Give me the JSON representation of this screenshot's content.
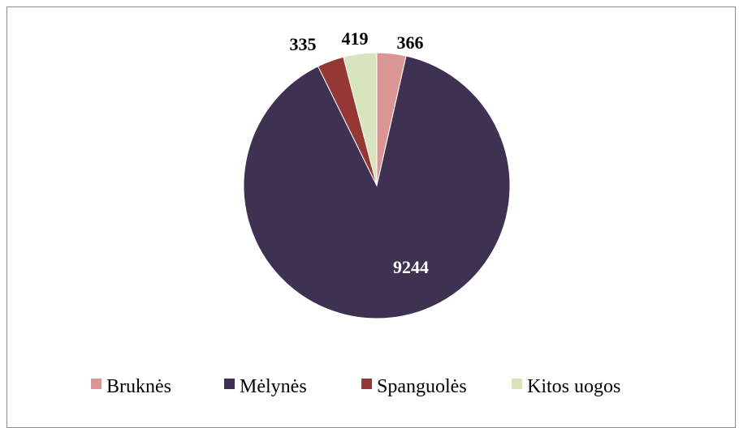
{
  "chart_data": {
    "type": "pie",
    "categories": [
      "Bruknės",
      "Mėlynės",
      "Spanguolės",
      "Kitos uogos"
    ],
    "values": [
      366,
      9244,
      335,
      419
    ],
    "colors": [
      "#d99694",
      "#3f3151",
      "#953735",
      "#d7e4bd"
    ],
    "data_label_colors": [
      "#000000",
      "#ffffff",
      "#000000",
      "#000000"
    ],
    "legend": {
      "position": "bottom",
      "entries": [
        "Bruknės",
        "Mėlynės",
        "Spanguolės",
        "Kitos uogos"
      ]
    }
  }
}
